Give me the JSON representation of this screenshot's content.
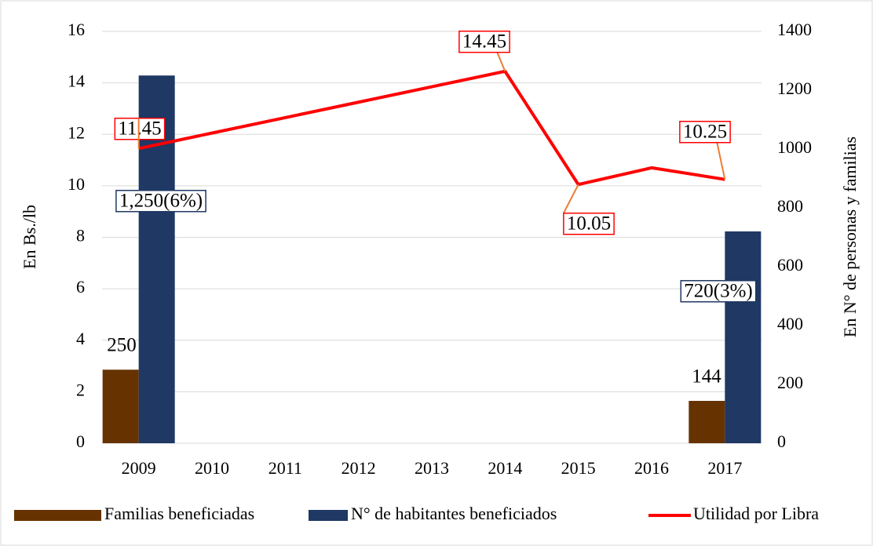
{
  "chart_data": {
    "type": "bar",
    "categories": [
      "2009",
      "2010",
      "2011",
      "2012",
      "2013",
      "2014",
      "2015",
      "2016",
      "2017"
    ],
    "series": [
      {
        "name": "Familias beneficiadas",
        "type": "bar",
        "axis": "y2",
        "color": "#663300",
        "values": [
          250,
          null,
          null,
          null,
          null,
          null,
          null,
          null,
          144
        ],
        "value_labels": [
          "250",
          null,
          null,
          null,
          null,
          null,
          null,
          null,
          "144"
        ]
      },
      {
        "name": "N° de habitantes beneficiados",
        "type": "bar",
        "axis": "y2",
        "color": "#1f3864",
        "values": [
          1250,
          null,
          null,
          null,
          null,
          null,
          null,
          null,
          720
        ],
        "value_labels": [
          "1,250(6%)",
          null,
          null,
          null,
          null,
          null,
          null,
          null,
          "720(3%)"
        ]
      },
      {
        "name": "Utilidad por Libra",
        "type": "line",
        "axis": "y",
        "color": "#ff0000",
        "values": [
          11.45,
          12.05,
          12.65,
          13.25,
          13.85,
          14.45,
          10.05,
          10.7,
          10.25
        ],
        "value_labels": [
          "11.45",
          null,
          null,
          null,
          null,
          "14.45",
          "10.05",
          null,
          "10.25"
        ]
      }
    ],
    "ylabel": "En Bs./lb",
    "y2label": "En N° de personas y familias",
    "ylim": [
      0,
      16
    ],
    "yticks": [
      0,
      2,
      4,
      6,
      8,
      10,
      12,
      14,
      16
    ],
    "y2lim": [
      0,
      1400
    ],
    "y2ticks": [
      0,
      200,
      400,
      600,
      800,
      1000,
      1200,
      1400
    ],
    "grid": true,
    "legend": "bottom"
  }
}
